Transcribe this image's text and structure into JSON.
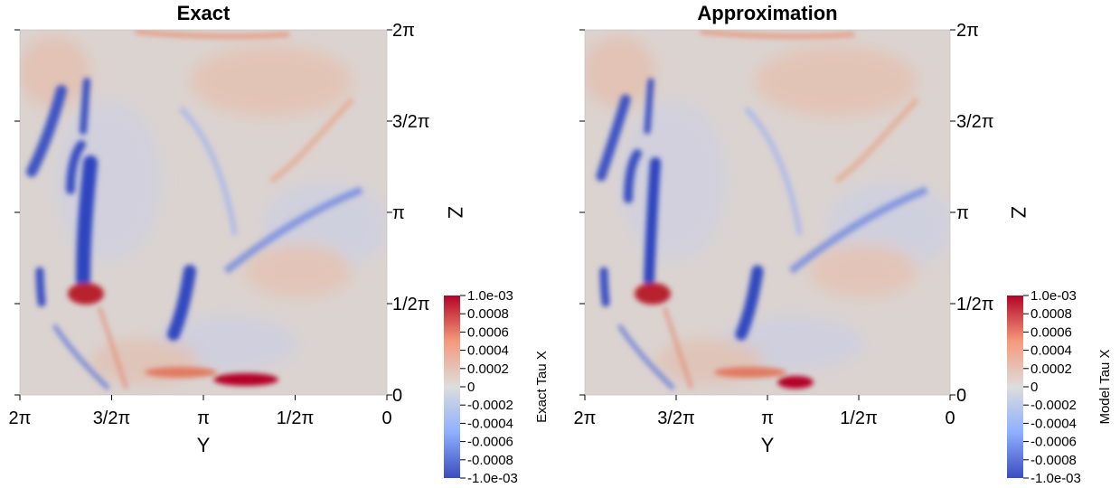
{
  "chart_data": [
    {
      "type": "heatmap",
      "title": "Exact",
      "xlabel": "Y",
      "ylabel": "Z",
      "x_ticks": [
        "2π",
        "3/2π",
        "π",
        "1/2π",
        "0"
      ],
      "y_ticks": [
        "0",
        "1/2π",
        "π",
        "3/2π",
        "2π"
      ],
      "xlim": [
        "2π",
        "0"
      ],
      "ylim": [
        "0",
        "2π"
      ],
      "colorbar": {
        "label": "Exact Tau X",
        "range": [
          -0.001,
          0.001
        ],
        "ticks": [
          "1.0e-03",
          "0.0008",
          "0.0006",
          "0.0004",
          "0.0002",
          "0",
          "-0.0002",
          "-0.0004",
          "-0.0006",
          "-0.0008",
          "-1.0e-03"
        ],
        "colormap": "cool-to-warm",
        "color_min": "#3b4cc0",
        "color_mid": "#dddddd",
        "color_max": "#b40426"
      }
    },
    {
      "type": "heatmap",
      "title": "Approximation",
      "xlabel": "Y",
      "ylabel": "Z",
      "x_ticks": [
        "2π",
        "3/2π",
        "π",
        "1/2π",
        "0"
      ],
      "y_ticks": [
        "0",
        "1/2π",
        "π",
        "3/2π",
        "2π"
      ],
      "xlim": [
        "2π",
        "0"
      ],
      "ylim": [
        "0",
        "2π"
      ],
      "colorbar": {
        "label": "Model Tau X",
        "range": [
          -0.001,
          0.001
        ],
        "ticks": [
          "1.0e-03",
          "0.0008",
          "0.0006",
          "0.0004",
          "0.0002",
          "0",
          "-0.0002",
          "-0.0004",
          "-0.0006",
          "-0.0008",
          "-1.0e-03"
        ],
        "colormap": "cool-to-warm",
        "color_min": "#3b4cc0",
        "color_mid": "#dddddd",
        "color_max": "#b40426"
      }
    }
  ]
}
